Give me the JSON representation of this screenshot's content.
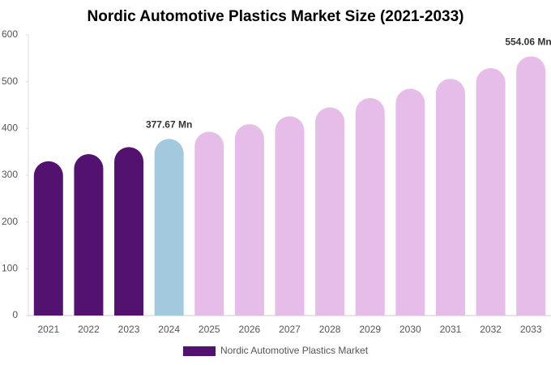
{
  "chart_data": {
    "type": "bar",
    "title": "Nordic Automotive Plastics Market Size (2021-2033)",
    "categories": [
      "2021",
      "2022",
      "2023",
      "2024",
      "2025",
      "2026",
      "2027",
      "2028",
      "2029",
      "2030",
      "2031",
      "2032",
      "2033"
    ],
    "series": [
      {
        "name": "Nordic Automotive Plastics Market",
        "color": "#541270",
        "colors": [
          "#541270",
          "#541270",
          "#541270",
          "#a3c9de",
          "#e6bde8",
          "#e6bde8",
          "#e6bde8",
          "#e6bde8",
          "#e6bde8",
          "#e6bde8",
          "#e6bde8",
          "#e6bde8",
          "#e6bde8"
        ],
        "values": [
          330,
          345,
          360,
          377.67,
          393,
          409,
          426,
          445,
          465,
          485,
          506,
          529,
          554.06
        ],
        "value_labels": [
          null,
          null,
          null,
          "377.67 Mn",
          null,
          null,
          null,
          null,
          null,
          null,
          null,
          null,
          "554.06 Mn"
        ]
      }
    ],
    "ylim": [
      0,
      600
    ],
    "yticks": [
      0,
      100,
      200,
      300,
      400,
      500,
      600
    ],
    "grid": false,
    "legend": "bottom"
  }
}
